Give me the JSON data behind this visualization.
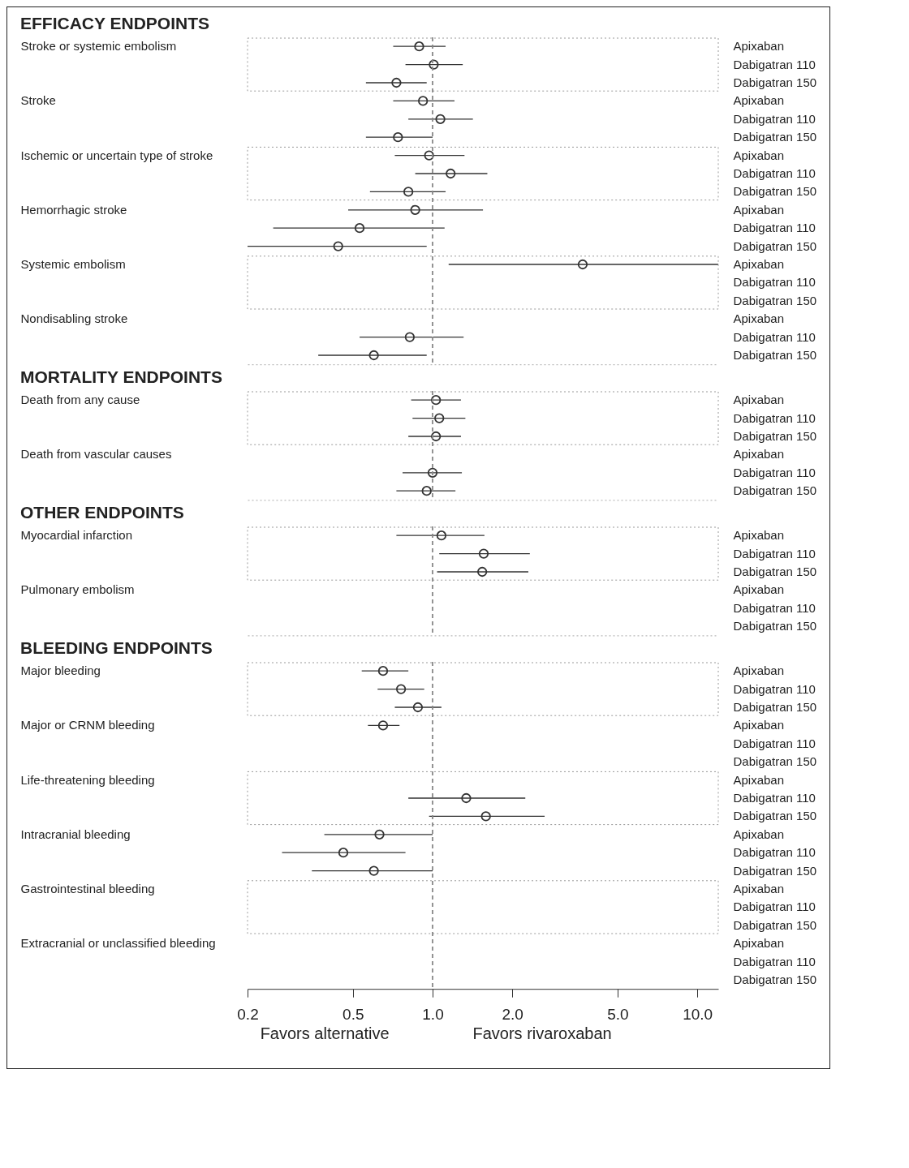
{
  "chart_data": [
    {
      "type": "scatter",
      "orientation": "horizontal",
      "title": "EFFICACY ENDPOINTS",
      "categories": [
        "Apixaban",
        "Dabigatran 110",
        "Dabigatran 150",
        "Apixaban",
        "Dabigatran 110",
        "Dabigatran 150",
        "Apixaban",
        "Dabigatran 110",
        "Dabigatran 150",
        "Apixaban",
        "Dabigatran 110",
        "Dabigatran 150",
        "Apixaban",
        "Dabigatran 110",
        "Dabigatran 150",
        "Apixaban",
        "Dabigatran 110",
        "Dabigatran 150"
      ],
      "series": [
        {
          "color": "#333333",
          "values": [
            0.89,
            1.01,
            0.73,
            0.92,
            1.07,
            0.74,
            0.97,
            1.17,
            0.81,
            0.86,
            0.53,
            0.44,
            3.69,
            null,
            null,
            null,
            0.82,
            0.6
          ],
          "errors": [
            [
              0.71,
              1.12
            ],
            [
              0.79,
              1.3
            ],
            [
              0.56,
              0.95
            ],
            [
              0.71,
              1.21
            ],
            [
              0.81,
              1.42
            ],
            [
              0.56,
              1.0
            ],
            [
              0.72,
              1.32
            ],
            [
              0.86,
              1.61
            ],
            [
              0.58,
              1.12
            ],
            [
              0.48,
              1.55
            ],
            [
              0.25,
              1.11
            ],
            [
              0.2,
              0.95
            ],
            [
              1.15,
              12
            ],
            null,
            null,
            null,
            [
              0.53,
              1.31
            ],
            [
              0.37,
              0.95
            ]
          ]
        }
      ],
      "annotations": [
        "Stroke or systemic embolism",
        "Stroke",
        "Ischemic or uncertain type of stroke",
        "Hemorrhagic stroke",
        "Systemic embolism",
        "Nondisabling stroke"
      ],
      "xlim": [
        0.2,
        12
      ],
      "log": "x",
      "marker": "circle",
      "tick_labels": "y",
      "ref_lines": [
        {
          "axis": "x",
          "value": 1,
          "line_style": "dashed",
          "color": "#888888"
        }
      ]
    },
    {
      "type": "scatter",
      "orientation": "horizontal",
      "title": "MORTALITY ENDPOINTS",
      "categories": [
        "Apixaban",
        "Dabigatran 110",
        "Dabigatran 150",
        "Apixaban",
        "Dabigatran 110",
        "Dabigatran 150"
      ],
      "series": [
        {
          "color": "#333333",
          "values": [
            1.03,
            1.06,
            1.03,
            null,
            1.0,
            0.95
          ],
          "errors": [
            [
              0.83,
              1.28
            ],
            [
              0.84,
              1.33
            ],
            [
              0.81,
              1.28
            ],
            null,
            [
              0.77,
              1.29
            ],
            [
              0.73,
              1.22
            ]
          ]
        }
      ],
      "annotations": [
        "Death from any cause",
        "Death from vascular causes"
      ],
      "xlim": [
        0.2,
        12
      ],
      "log": "x",
      "marker": "circle",
      "tick_labels": "y",
      "ref_lines": [
        {
          "axis": "x",
          "value": 1,
          "line_style": "dashed",
          "color": "#888888"
        }
      ]
    },
    {
      "type": "scatter",
      "orientation": "horizontal",
      "title": "OTHER ENDPOINTS",
      "categories": [
        "Apixaban",
        "Dabigatran 110",
        "Dabigatran 150",
        "Apixaban",
        "Dabigatran 110",
        "Dabigatran 150"
      ],
      "series": [
        {
          "color": "#333333",
          "values": [
            1.08,
            1.56,
            1.54,
            null,
            null,
            null
          ],
          "errors": [
            [
              0.73,
              1.57
            ],
            [
              1.06,
              2.33
            ],
            [
              1.04,
              2.3
            ],
            null,
            null,
            null
          ]
        }
      ],
      "annotations": [
        "Myocardial infarction",
        "Pulmonary embolism"
      ],
      "xlim": [
        0.2,
        12
      ],
      "log": "x",
      "marker": "circle",
      "tick_labels": "y",
      "ref_lines": [
        {
          "axis": "x",
          "value": 1,
          "line_style": "dashed",
          "color": "#888888"
        }
      ]
    },
    {
      "type": "scatter",
      "orientation": "horizontal",
      "title": "BLEEDING ENDPOINTS",
      "categories": [
        "Apixaban",
        "Dabigatran 110",
        "Dabigatran 150",
        "Apixaban",
        "Dabigatran 110",
        "Dabigatran 150",
        "Apixaban",
        "Dabigatran 110",
        "Dabigatran 150",
        "Apixaban",
        "Dabigatran 110",
        "Dabigatran 150",
        "Apixaban",
        "Dabigatran 110",
        "Dabigatran 150",
        "Apixaban",
        "Dabigatran 110",
        "Dabigatran 150"
      ],
      "series": [
        {
          "color": "#333333",
          "values": [
            0.65,
            0.76,
            0.88,
            0.65,
            null,
            null,
            null,
            1.34,
            1.59,
            0.63,
            0.46,
            0.6,
            null,
            null,
            null,
            null,
            null,
            null
          ],
          "errors": [
            [
              0.54,
              0.81
            ],
            [
              0.62,
              0.93
            ],
            [
              0.72,
              1.08
            ],
            [
              0.57,
              0.75
            ],
            null,
            null,
            null,
            [
              0.81,
              2.24
            ],
            [
              0.97,
              2.65
            ],
            [
              0.39,
              1.0
            ],
            [
              0.27,
              0.79
            ],
            [
              0.35,
              1.0
            ],
            null,
            null,
            null,
            null,
            null,
            null
          ]
        }
      ],
      "annotations": [
        "Major bleeding",
        "Major or CRNM bleeding",
        "Life-threatening bleeding",
        "Intracranial bleeding",
        "Gastrointestinal bleeding",
        "Extracranial or unclassified bleeding"
      ],
      "xlim": [
        0.2,
        12
      ],
      "xticks": [
        0.2,
        0.5,
        {
          "value": 1,
          "label": "1.0"
        },
        {
          "value": 2,
          "label": "2.0"
        },
        {
          "value": 5,
          "label": "5.0"
        },
        {
          "value": 10,
          "label": "10.0"
        }
      ],
      "log": "x",
      "marker": "circle",
      "ref_lines": [
        {
          "axis": "x",
          "value": 1,
          "line_style": "dashed",
          "color": "#888888"
        }
      ]
    },
    {
      "type": "other",
      "annotations": [
        "Favors alternative",
        "Favors rivaroxaban"
      ]
    }
  ]
}
